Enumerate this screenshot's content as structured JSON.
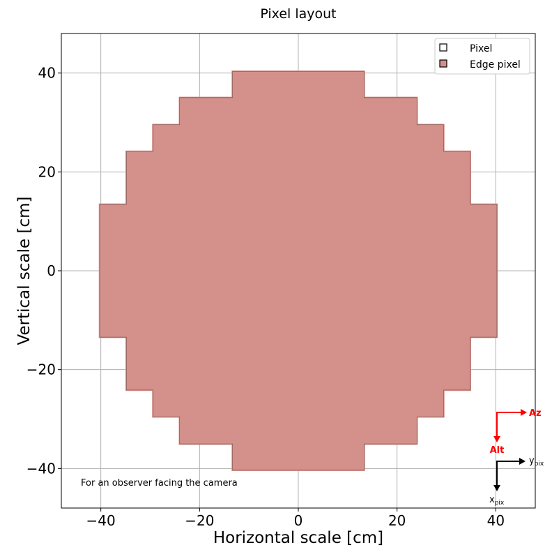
{
  "chart_data": {
    "type": "scatter",
    "title": "Pixel layout",
    "xlabel": "Horizontal scale [cm]",
    "ylabel": "Vertical scale [cm]",
    "xlim": [
      -48,
      48
    ],
    "ylim": [
      -48,
      48
    ],
    "xticks": [
      -40,
      -20,
      0,
      20,
      40
    ],
    "yticks": [
      -40,
      -20,
      0,
      20,
      40
    ],
    "xtick_labels": [
      "−40",
      "−20",
      "0",
      "20",
      "40"
    ],
    "ytick_labels": [
      "−40",
      "−20",
      "0",
      "20",
      "40"
    ],
    "grid": true,
    "legend_position": "top-right",
    "series": [
      {
        "name": "Pixel",
        "marker": "square",
        "face_color": "#ffffff",
        "edge_color": "#000000"
      },
      {
        "name": "Edge pixel",
        "marker": "square",
        "face_color": "#d4908a",
        "edge_color": "#000000"
      }
    ],
    "pixel_pitch_cm": 0.5,
    "camera_outline_steps": [
      {
        "half_width_cm": 13.3,
        "y_from": 35.0,
        "y_to": 40.3
      },
      {
        "half_width_cm": 24.0,
        "y_from": 29.5,
        "y_to": 35.0
      },
      {
        "half_width_cm": 29.4,
        "y_from": 24.1,
        "y_to": 29.5
      },
      {
        "half_width_cm": 34.8,
        "y_from": 13.4,
        "y_to": 24.1
      },
      {
        "half_width_cm": 40.2,
        "y_from": -13.4,
        "y_to": 13.4
      },
      {
        "half_width_cm": 34.8,
        "y_from": -24.1,
        "y_to": -13.4
      },
      {
        "half_width_cm": 29.4,
        "y_from": -29.5,
        "y_to": -24.1
      },
      {
        "half_width_cm": 24.0,
        "y_from": -35.0,
        "y_to": -29.5
      },
      {
        "half_width_cm": 13.3,
        "y_from": -40.3,
        "y_to": -35.0
      }
    ],
    "annotation": "For an observer facing the camera",
    "orientation": {
      "sky": {
        "horizontal": "Az",
        "vertical": "Alt",
        "color": "#ff0000"
      },
      "pixel": {
        "horizontal_main": "y",
        "horizontal_sub": "pix",
        "vertical_main": "x",
        "vertical_sub": "pix",
        "color": "#000000"
      }
    },
    "colors": {
      "grid": "#b0b0b0",
      "pixel_edge": "#333333",
      "edge_fill": "#d4908a",
      "sky_arrow": "#ff0000"
    }
  }
}
